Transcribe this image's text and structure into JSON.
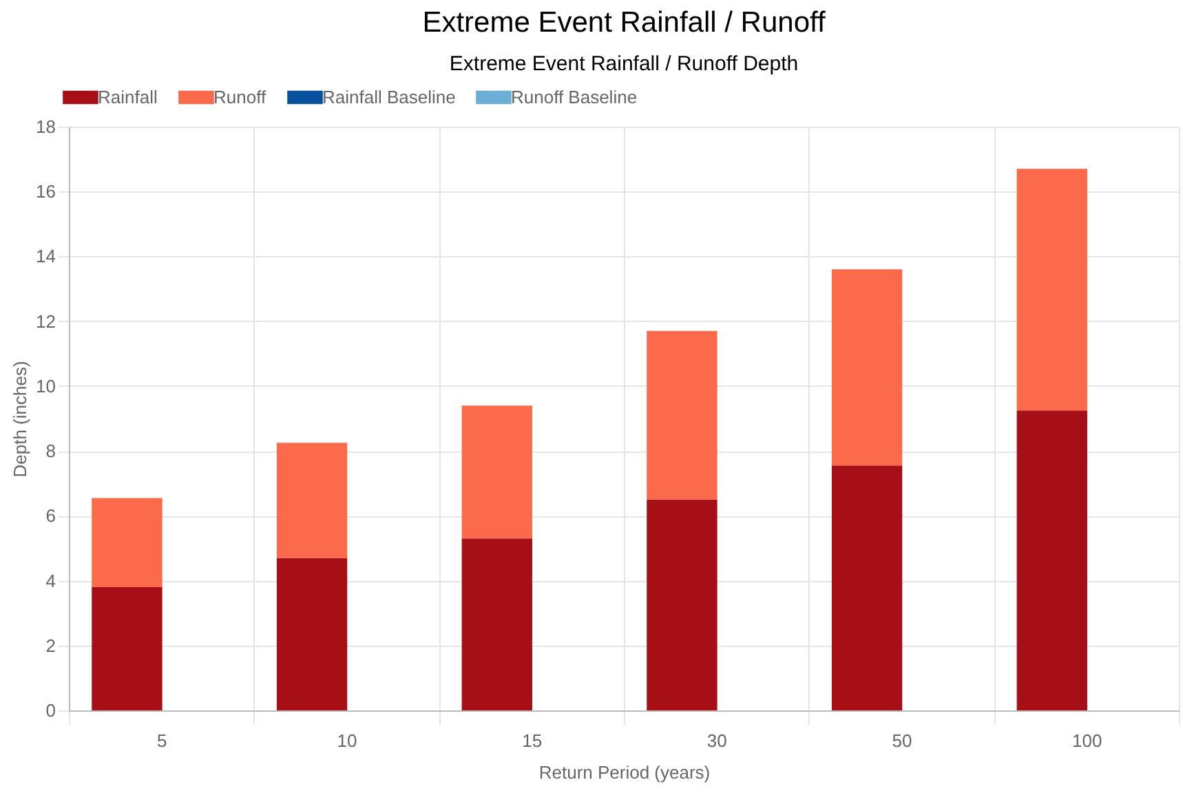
{
  "chart_data": {
    "type": "bar",
    "title": "Extreme Event Rainfall / Runoff",
    "subtitle": "Extreme Event Rainfall / Runoff Depth",
    "xlabel": "Return Period (years)",
    "ylabel": "Depth (inches)",
    "categories": [
      "5",
      "10",
      "15",
      "30",
      "50",
      "100"
    ],
    "series": [
      {
        "name": "Rainfall",
        "color": "#a50f15",
        "values": [
          3.8,
          4.7,
          5.3,
          6.5,
          7.55,
          9.25
        ]
      },
      {
        "name": "Runoff",
        "color": "#fb6a4a",
        "values": [
          2.75,
          3.55,
          4.1,
          5.2,
          6.05,
          7.45
        ]
      },
      {
        "name": "Rainfall Baseline",
        "color": "#08519c",
        "values": [
          null,
          null,
          null,
          null,
          null,
          null
        ]
      },
      {
        "name": "Runoff Baseline",
        "color": "#6baed6",
        "values": [
          null,
          null,
          null,
          null,
          null,
          null
        ]
      }
    ],
    "stacked": true,
    "ylim": [
      0,
      18
    ],
    "yticks": [
      0,
      2,
      4,
      6,
      8,
      10,
      12,
      14,
      16,
      18
    ],
    "grid": true,
    "legend": "top"
  }
}
